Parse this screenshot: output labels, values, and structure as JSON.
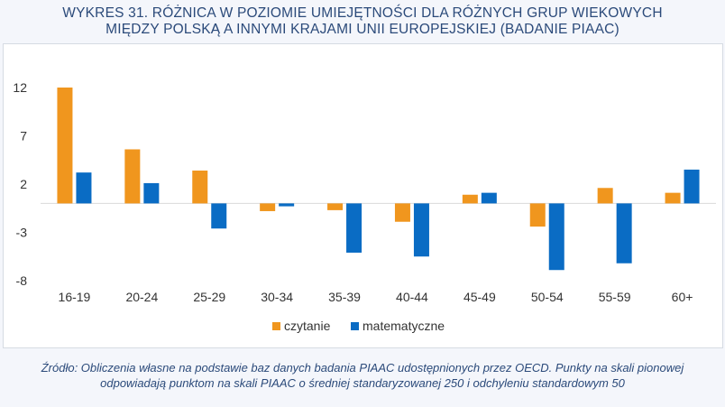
{
  "title_line1": "WYKRES 31. RÓŻNICA W POZIOMIE UMIEJĘTNOŚCI DLA RÓŻNYCH GRUP WIEKOWYCH",
  "title_line2": "MIĘDZY POLSKĄ A INNYMI KRAJAMI UNII EUROPEJSKIEJ (BADANIE PIAAC)",
  "source_line1": "Źródło: Obliczenia własne na podstawie baz danych badania PIAAC udostępnionych przez OECD. Punkty na skali pionowej",
  "source_line2": "odpowiadają punktom na skali PIAAC o średniej standaryzowanej 250 i odchyleniu standardowym 50",
  "chart_data": {
    "type": "bar",
    "categories": [
      "16-19",
      "20-24",
      "25-29",
      "30-34",
      "35-39",
      "40-44",
      "45-49",
      "50-54",
      "55-59",
      "60+"
    ],
    "series": [
      {
        "name": "czytanie",
        "color": "#f0961e",
        "values": [
          12,
          5.6,
          3.4,
          -0.8,
          -0.7,
          -1.9,
          0.9,
          -2.4,
          1.6,
          1.1
        ]
      },
      {
        "name": "matematyczne",
        "color": "#0a6cc4",
        "values": [
          3.2,
          2.1,
          -2.6,
          -0.3,
          -5.1,
          -5.5,
          1.1,
          -6.9,
          -6.2,
          3.5
        ]
      }
    ],
    "yticks": [
      12,
      7,
      2,
      -3,
      -8
    ],
    "ylim": [
      -8,
      12
    ],
    "grid": false,
    "legend_position": "bottom-center"
  }
}
